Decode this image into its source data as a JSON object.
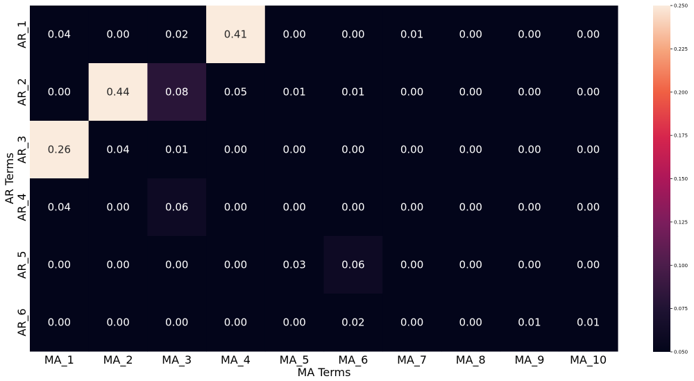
{
  "chart_data": {
    "type": "heatmap",
    "title": "",
    "xlabel": "MA Terms",
    "ylabel": "AR Terms",
    "x_categories": [
      "MA_1",
      "MA_2",
      "MA_3",
      "MA_4",
      "MA_5",
      "MA_6",
      "MA_7",
      "MA_8",
      "MA_9",
      "MA_10"
    ],
    "y_categories": [
      "AR_1",
      "AR_2",
      "AR_3",
      "AR_4",
      "AR_5",
      "AR_6"
    ],
    "values": [
      [
        0.04,
        0.0,
        0.02,
        0.41,
        0.0,
        0.0,
        0.01,
        0.0,
        0.0,
        0.0
      ],
      [
        0.0,
        0.44,
        0.08,
        0.05,
        0.01,
        0.01,
        0.0,
        0.0,
        0.0,
        0.0
      ],
      [
        0.26,
        0.04,
        0.01,
        0.0,
        0.0,
        0.0,
        0.0,
        0.0,
        0.0,
        0.0
      ],
      [
        0.04,
        0.0,
        0.06,
        0.0,
        0.0,
        0.0,
        0.0,
        0.0,
        0.0,
        0.0
      ],
      [
        0.0,
        0.0,
        0.0,
        0.0,
        0.03,
        0.06,
        0.0,
        0.0,
        0.0,
        0.0
      ],
      [
        0.0,
        0.0,
        0.0,
        0.0,
        0.0,
        0.02,
        0.0,
        0.0,
        0.01,
        0.01
      ]
    ],
    "color_range": [
      0.05,
      0.25
    ],
    "colorbar_ticks": [
      "0.050",
      "0.075",
      "0.100",
      "0.125",
      "0.150",
      "0.175",
      "0.200",
      "0.225",
      "0.250"
    ],
    "colormap": "rocket",
    "grid": false,
    "legend": "colorbar-right"
  }
}
